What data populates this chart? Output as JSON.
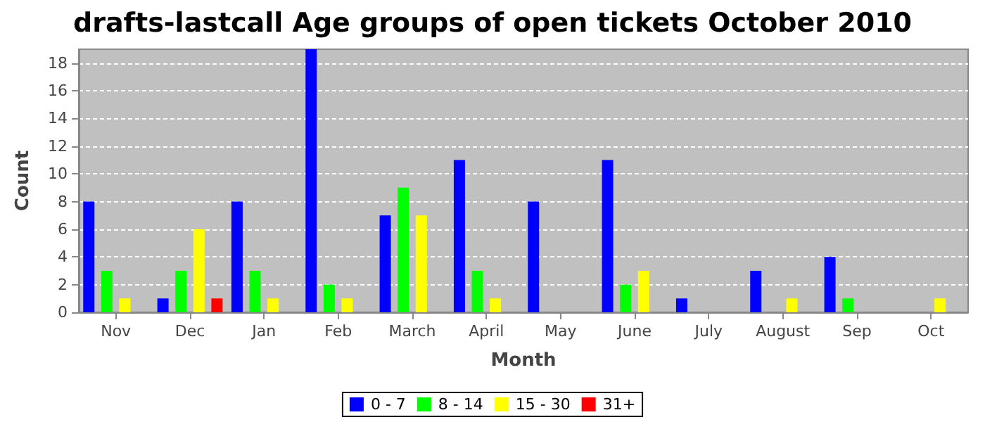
{
  "chart_data": {
    "type": "bar",
    "title": "drafts-lastcall Age groups of open tickets October 2010",
    "xlabel": "Month",
    "ylabel": "Count",
    "categories": [
      "Nov",
      "Dec",
      "Jan",
      "Feb",
      "March",
      "April",
      "May",
      "June",
      "July",
      "August",
      "Sep",
      "Oct"
    ],
    "series": [
      {
        "name": "0 - 7",
        "color": "#0000ff",
        "values": [
          8,
          1,
          8,
          19,
          7,
          11,
          8,
          11,
          1,
          3,
          4,
          0
        ]
      },
      {
        "name": "8 - 14",
        "color": "#00ff00",
        "values": [
          3,
          3,
          3,
          2,
          9,
          3,
          0,
          2,
          0,
          0,
          1,
          0
        ]
      },
      {
        "name": "15 - 30",
        "color": "#ffff00",
        "values": [
          1,
          6,
          1,
          1,
          7,
          1,
          0,
          3,
          0,
          1,
          0,
          1
        ]
      },
      {
        "name": "31+",
        "color": "#ff0000",
        "values": [
          0,
          1,
          0,
          0,
          0,
          0,
          0,
          0,
          0,
          0,
          0,
          0
        ]
      }
    ],
    "ylim": [
      0,
      19
    ],
    "yticks": [
      0,
      2,
      4,
      6,
      8,
      10,
      12,
      14,
      16,
      18
    ],
    "grid": "y",
    "legend": "bottom"
  }
}
